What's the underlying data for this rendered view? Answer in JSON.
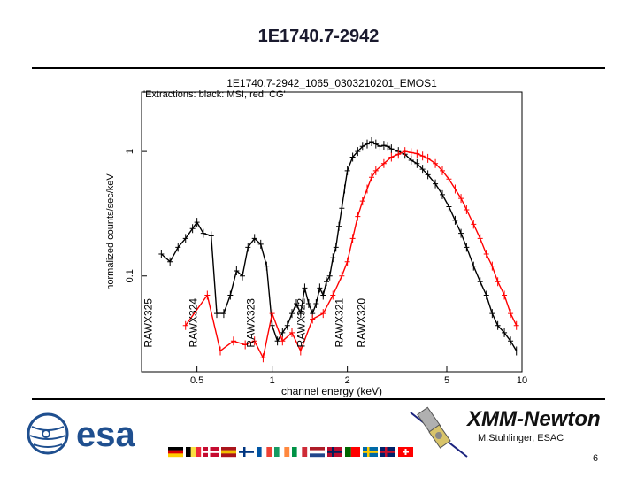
{
  "slide": {
    "title": "1E1740.7-2942",
    "brand_name": "XMM-Newton",
    "author": "M.Stuhlinger, ESAC",
    "page_number": "6"
  },
  "logos": {
    "esa_text": "esa",
    "esa_color": "#1f4f8f",
    "satellite_icon": "satellite-icon",
    "flags": [
      "de",
      "be",
      "dk",
      "es",
      "fi",
      "fr",
      "ie",
      "it",
      "nl",
      "no",
      "pt",
      "se",
      "gb",
      "ch"
    ]
  },
  "chart_data": {
    "type": "line",
    "title": "1E1740.7-2942_1065_0303210201_EMOS1",
    "subtitle": "'Extractions: black: MSI, red: CG'",
    "xlabel": "channel energy (keV)",
    "ylabel": "normalized counts/sec/keV",
    "xscale": "log",
    "yscale": "log",
    "xlim": [
      0.3,
      10
    ],
    "ylim": [
      0.017,
      3.0
    ],
    "x_ticks": [
      0.5,
      1,
      2,
      5,
      10
    ],
    "x_tick_labels": [
      "0.5",
      "1",
      "2",
      "5",
      "10"
    ],
    "y_ticks": [
      0.1,
      1
    ],
    "y_tick_labels": [
      "0.1",
      "1"
    ],
    "series": [
      {
        "color": "#000000",
        "x": [
          0.36,
          0.39,
          0.42,
          0.45,
          0.48,
          0.5,
          0.53,
          0.57,
          0.6,
          0.64,
          0.68,
          0.72,
          0.76,
          0.8,
          0.85,
          0.9,
          0.95,
          1.0,
          1.05,
          1.1,
          1.15,
          1.2,
          1.25,
          1.3,
          1.35,
          1.4,
          1.45,
          1.5,
          1.55,
          1.6,
          1.65,
          1.7,
          1.75,
          1.8,
          1.85,
          1.9,
          1.95,
          2.0,
          2.1,
          2.2,
          2.3,
          2.4,
          2.5,
          2.6,
          2.7,
          2.8,
          2.9,
          3.0,
          3.2,
          3.4,
          3.6,
          3.8,
          4.0,
          4.2,
          4.5,
          4.8,
          5.1,
          5.4,
          5.7,
          6.0,
          6.4,
          6.8,
          7.2,
          7.6,
          8.0,
          8.5,
          9.0,
          9.5
        ],
        "y": [
          0.15,
          0.13,
          0.17,
          0.2,
          0.24,
          0.27,
          0.22,
          0.21,
          0.05,
          0.05,
          0.07,
          0.11,
          0.1,
          0.17,
          0.2,
          0.18,
          0.12,
          0.04,
          0.03,
          0.035,
          0.04,
          0.05,
          0.06,
          0.05,
          0.08,
          0.06,
          0.05,
          0.06,
          0.08,
          0.07,
          0.09,
          0.1,
          0.14,
          0.17,
          0.25,
          0.35,
          0.5,
          0.7,
          0.9,
          1.0,
          1.1,
          1.15,
          1.2,
          1.15,
          1.1,
          1.12,
          1.1,
          1.05,
          1.0,
          0.95,
          0.85,
          0.8,
          0.72,
          0.65,
          0.55,
          0.45,
          0.36,
          0.28,
          0.22,
          0.17,
          0.12,
          0.09,
          0.07,
          0.05,
          0.04,
          0.035,
          0.03,
          0.025
        ]
      },
      {
        "color": "#ff0000",
        "x": [
          0.45,
          0.55,
          0.62,
          0.7,
          0.78,
          0.85,
          0.92,
          1.0,
          1.1,
          1.2,
          1.3,
          1.45,
          1.6,
          1.75,
          1.9,
          2.0,
          2.1,
          2.2,
          2.3,
          2.4,
          2.5,
          2.6,
          2.8,
          3.0,
          3.2,
          3.4,
          3.6,
          3.8,
          4.0,
          4.2,
          4.5,
          4.8,
          5.1,
          5.4,
          5.7,
          6.0,
          6.4,
          6.8,
          7.2,
          7.6,
          8.0,
          8.5,
          9.0,
          9.5
        ],
        "y": [
          0.04,
          0.07,
          0.025,
          0.03,
          0.028,
          0.03,
          0.022,
          0.05,
          0.03,
          0.035,
          0.025,
          0.045,
          0.05,
          0.07,
          0.1,
          0.13,
          0.2,
          0.3,
          0.4,
          0.5,
          0.62,
          0.7,
          0.8,
          0.9,
          0.95,
          1.0,
          0.98,
          0.96,
          0.92,
          0.88,
          0.8,
          0.7,
          0.6,
          0.5,
          0.42,
          0.34,
          0.26,
          0.2,
          0.15,
          0.12,
          0.09,
          0.07,
          0.05,
          0.04
        ]
      }
    ],
    "annotations": [
      {
        "label": "RAWX325",
        "x_keV": 0.33,
        "y": 0.042
      },
      {
        "label": "RAWX324",
        "x_keV": 0.5,
        "y": 0.042
      },
      {
        "label": "RAWX323",
        "x_keV": 0.85,
        "y": 0.042
      },
      {
        "label": "RAWX322",
        "x_keV": 1.35,
        "y": 0.042
      },
      {
        "label": "RAWX321",
        "x_keV": 1.92,
        "y": 0.042
      },
      {
        "label": "RAWX320",
        "x_keV": 2.35,
        "y": 0.042
      }
    ]
  }
}
